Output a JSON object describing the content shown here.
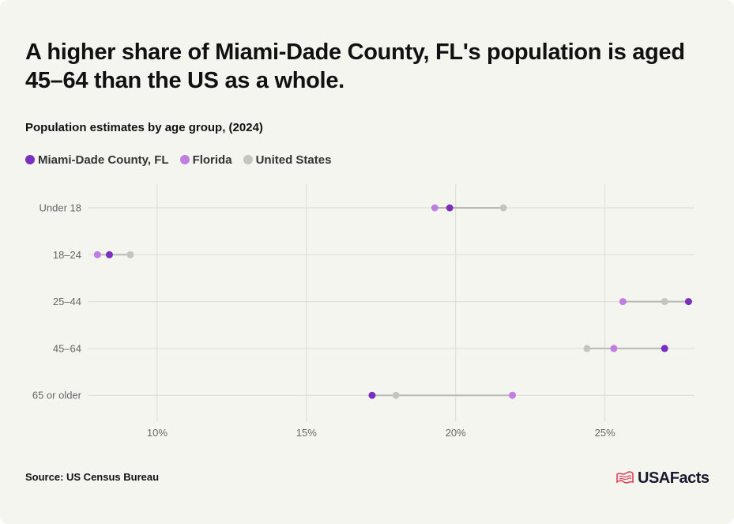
{
  "title": "A higher share of Miami-Dade County, FL's population is aged 45–64 than the US as a whole.",
  "subtitle": "Population estimates by age group, (2024)",
  "source": "Source: US Census Bureau",
  "brand": "USAFacts",
  "colors": {
    "miami": "#7b2fbf",
    "florida": "#c07ee0",
    "us": "#c4c4c0",
    "grid": "#dcdcd6",
    "connector": "#b8b8b4",
    "logo_accent": "#e0405a"
  },
  "chart_data": {
    "type": "dot",
    "title": "A higher share of Miami-Dade County, FL's population is aged 45–64 than the US as a whole.",
    "subtitle": "Population estimates by age group, (2024)",
    "categories": [
      "Under 18",
      "18–24",
      "25–44",
      "45–64",
      "65 or older"
    ],
    "series": [
      {
        "name": "Miami-Dade County, FL",
        "color": "#7b2fbf",
        "values": [
          19.8,
          8.4,
          27.8,
          27.0,
          17.2
        ]
      },
      {
        "name": "Florida",
        "color": "#c07ee0",
        "values": [
          19.3,
          8.0,
          25.6,
          25.3,
          21.9
        ]
      },
      {
        "name": "United States",
        "color": "#c4c4c0",
        "values": [
          21.6,
          9.1,
          27.0,
          24.4,
          18.0
        ]
      }
    ],
    "x_ticks": [
      10,
      15,
      20,
      25
    ],
    "x_tick_labels": [
      "10%",
      "15%",
      "20%",
      "25%"
    ],
    "xlim": [
      7.7,
      28.0
    ],
    "xlabel": "",
    "ylabel": "",
    "grid": true,
    "legend": "top-left"
  }
}
